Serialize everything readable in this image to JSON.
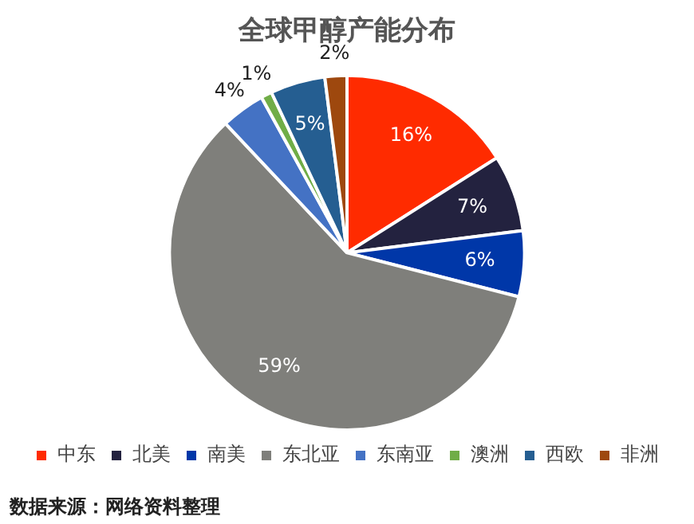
{
  "chart_data": {
    "type": "pie",
    "title": "全球甲醇产能分布",
    "categories": [
      "中东",
      "北美",
      "南美",
      "东北亚",
      "东南亚",
      "澳洲",
      "西欧",
      "非洲"
    ],
    "values": [
      16,
      7,
      6,
      59,
      4,
      1,
      5,
      2
    ],
    "value_labels": [
      "16%",
      "7%",
      "6%",
      "59%",
      "4%",
      "1%",
      "5%",
      "2%"
    ],
    "colors": [
      "#ff2b00",
      "#23223f",
      "#0037a8",
      "#7f7f7b",
      "#4472c4",
      "#70ad47",
      "#255e91",
      "#9e480e"
    ],
    "legend": "bottom",
    "annotations": [
      "数据来源：网络资料整理"
    ]
  }
}
